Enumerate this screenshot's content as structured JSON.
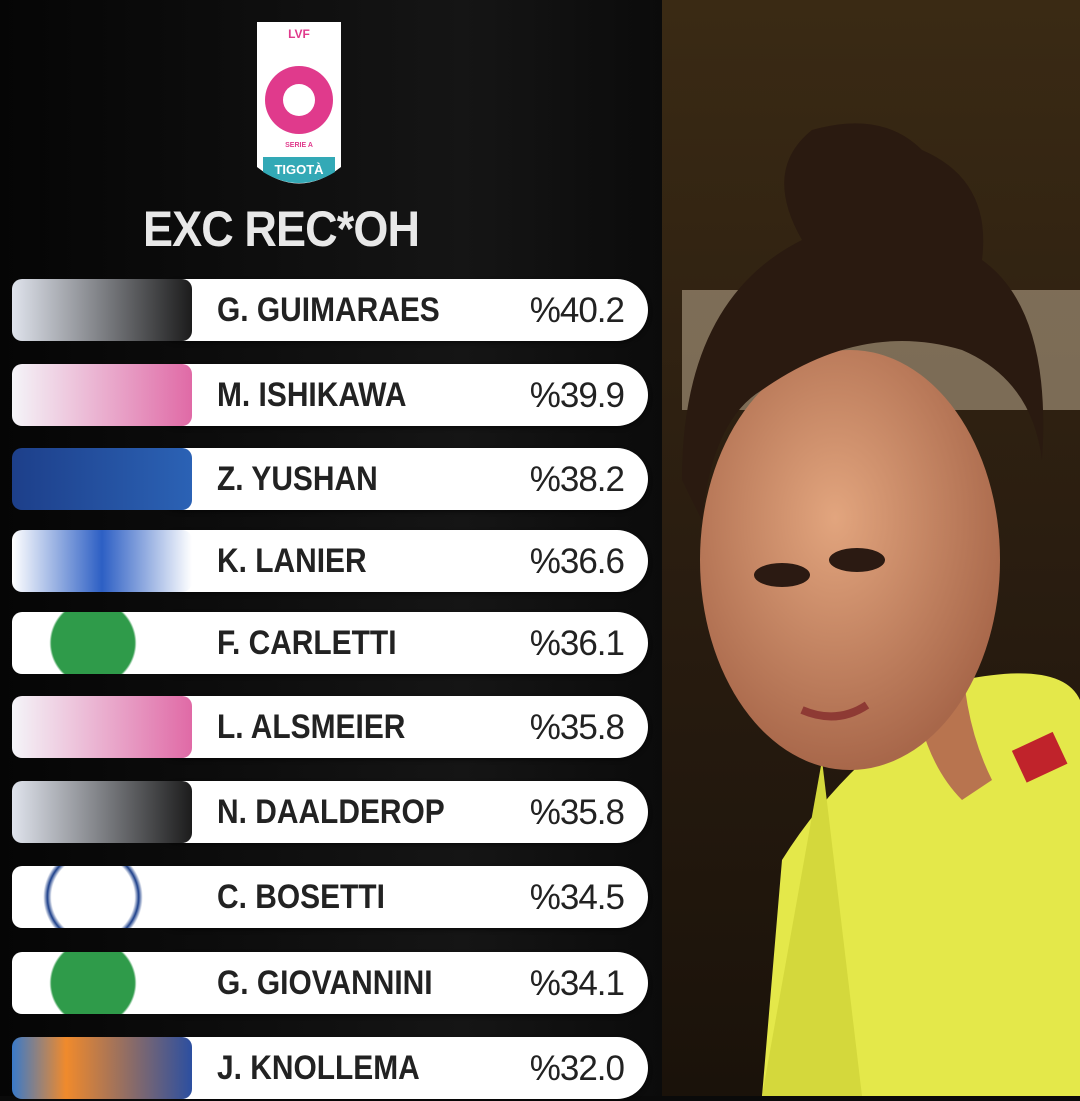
{
  "logo": {
    "top": "LVF",
    "middle": "SERIE A",
    "bottom": "TIGOTÀ"
  },
  "title": "EXC REC*OH",
  "rows": [
    {
      "name": "G. GUIMARAES",
      "value": "%40.2"
    },
    {
      "name": "M. ISHIKAWA",
      "value": "%39.9"
    },
    {
      "name": "Z. YUSHAN",
      "value": "%38.2"
    },
    {
      "name": "K. LANIER",
      "value": "%36.6"
    },
    {
      "name": "F. CARLETTI",
      "value": "%36.1"
    },
    {
      "name": "L. ALSMEIER",
      "value": "%35.8"
    },
    {
      "name": "N. DAALDEROP",
      "value": "%35.8"
    },
    {
      "name": "C. BOSETTI",
      "value": "%34.5"
    },
    {
      "name": "G. GIOVANNINI",
      "value": "%34.1"
    },
    {
      "name": "J. KNOLLEMA",
      "value": "%32.0"
    }
  ]
}
